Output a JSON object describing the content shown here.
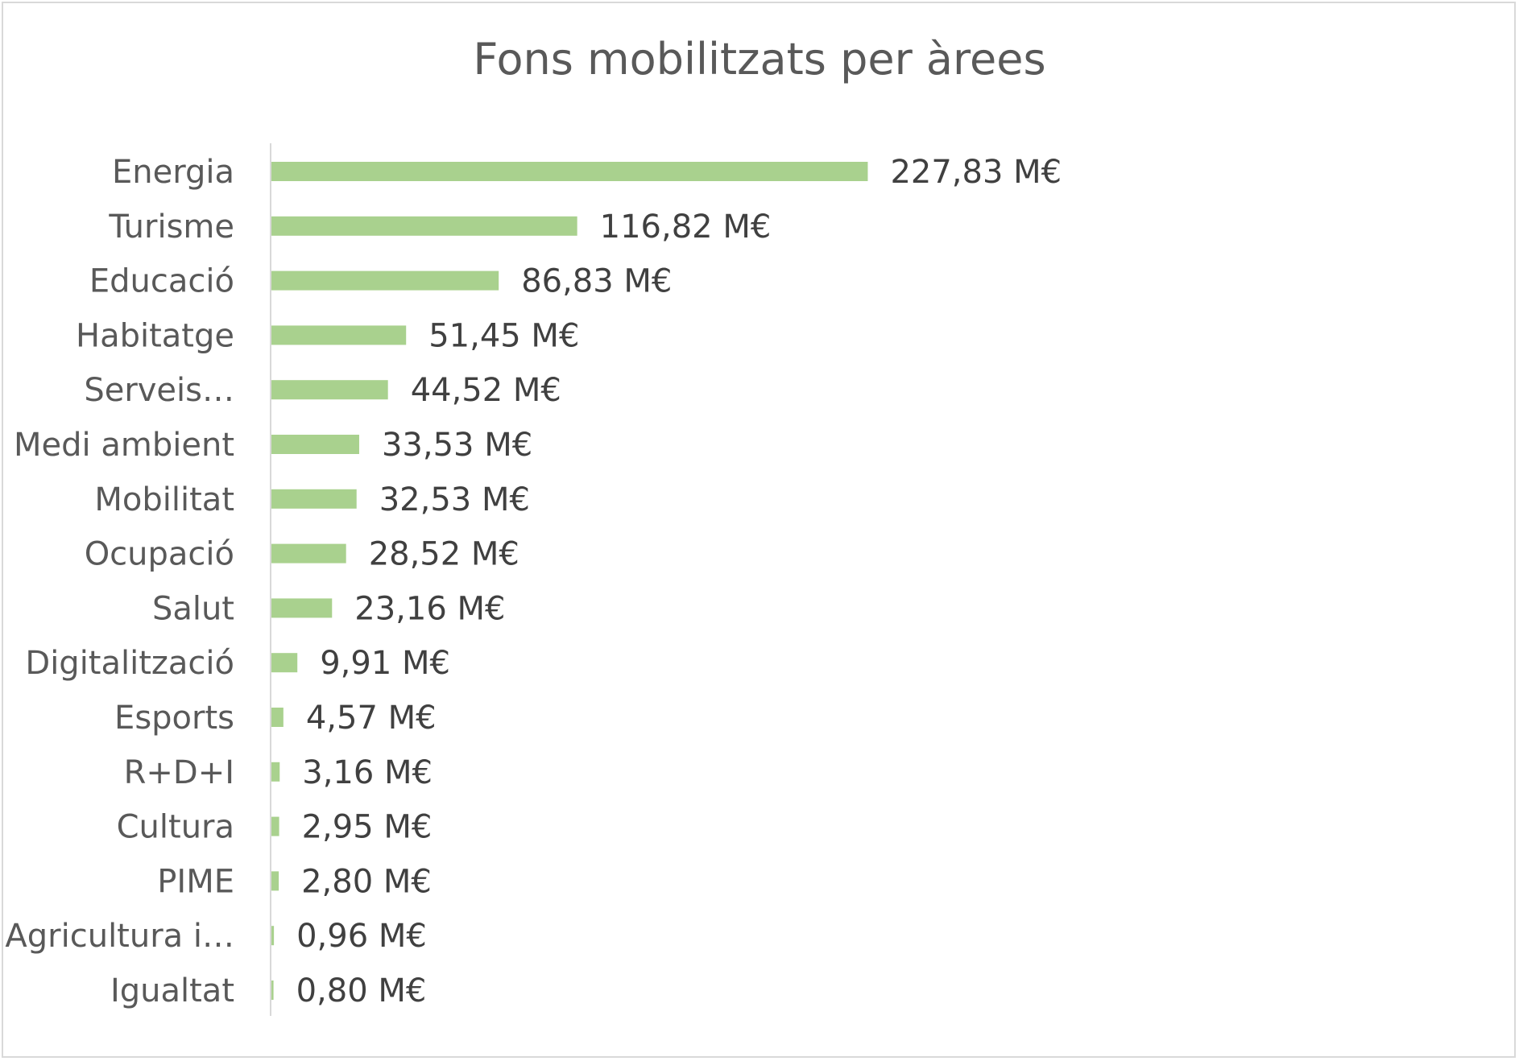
{
  "chart_data": {
    "type": "bar",
    "orientation": "horizontal",
    "title": "Fons mobilitzats per àrees",
    "xlabel": "",
    "ylabel": "",
    "unit": "M€",
    "bar_color": "#a9d18e",
    "grid": false,
    "legend": "none",
    "xlim": [
      0,
      300
    ],
    "categories": [
      "Energia",
      "Turisme",
      "Educació",
      "Habitatge",
      "Serveis…",
      "Medi ambient",
      "Mobilitat",
      "Ocupació",
      "Salut",
      "Digitalització",
      "Esports",
      "R+D+I",
      "Cultura",
      "PIME",
      "Agricultura i…",
      "Igualtat"
    ],
    "values": [
      227.83,
      116.82,
      86.83,
      51.45,
      44.52,
      33.53,
      32.53,
      28.52,
      23.16,
      9.91,
      4.57,
      3.16,
      2.95,
      2.8,
      0.96,
      0.8
    ],
    "data_labels": [
      "227,83 M€",
      "116,82 M€",
      "86,83 M€",
      "51,45 M€",
      "44,52 M€",
      "33,53 M€",
      "32,53 M€",
      "28,52 M€",
      "23,16 M€",
      "9,91 M€",
      "4,57 M€",
      "3,16 M€",
      "2,95 M€",
      "2,80 M€",
      "0,96 M€",
      "0,80 M€"
    ]
  }
}
